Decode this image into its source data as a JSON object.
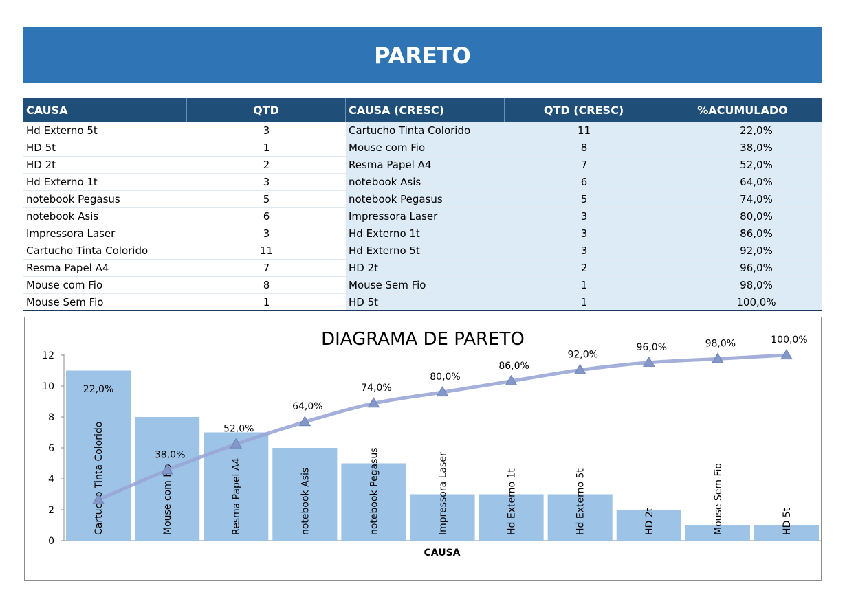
{
  "banner": {
    "title": "PARETO"
  },
  "table": {
    "headers": [
      "CAUSA",
      "QTD",
      "CAUSA (CRESC)",
      "QTD (CRESC)",
      "%ACUMULADO"
    ],
    "rows": [
      [
        "Hd Externo 5t",
        "3",
        "Cartucho Tinta Colorido",
        "11",
        "22,0%"
      ],
      [
        "HD 5t",
        "1",
        "Mouse com Fio",
        "8",
        "38,0%"
      ],
      [
        "HD 2t",
        "2",
        "Resma Papel A4",
        "7",
        "52,0%"
      ],
      [
        "Hd Externo 1t",
        "3",
        "notebook Asis",
        "6",
        "64,0%"
      ],
      [
        "notebook Pegasus",
        "5",
        "notebook Pegasus",
        "5",
        "74,0%"
      ],
      [
        "notebook Asis",
        "6",
        "Impressora Laser",
        "3",
        "80,0%"
      ],
      [
        "Impressora Laser",
        "3",
        "Hd Externo 1t",
        "3",
        "86,0%"
      ],
      [
        "Cartucho Tinta Colorido",
        "11",
        "Hd Externo 5t",
        "3",
        "92,0%"
      ],
      [
        "Resma Papel A4",
        "7",
        "HD 2t",
        "2",
        "96,0%"
      ],
      [
        "Mouse com Fio",
        "8",
        "Mouse Sem Fio",
        "1",
        "98,0%"
      ],
      [
        "Mouse Sem Fio",
        "1",
        "HD 5t",
        "1",
        "100,0%"
      ]
    ]
  },
  "chart_data": {
    "type": "bar",
    "title": "DIAGRAMA DE PARETO",
    "xlabel": "CAUSA",
    "ylabel": "",
    "ylim": [
      0,
      12
    ],
    "yticks": [
      0,
      2,
      4,
      6,
      8,
      10,
      12
    ],
    "grid": false,
    "legend": "none",
    "categories": [
      "Cartucho Tinta Colorido",
      "Mouse com Fio",
      "Resma Papel A4",
      "notebook Asis",
      "notebook Pegasus",
      "Impressora Laser",
      "Hd Externo 1t",
      "Hd Externo 5t",
      "HD 2t",
      "Mouse Sem Fio",
      "HD 5t"
    ],
    "series": [
      {
        "type": "bar",
        "values": [
          11,
          8,
          7,
          6,
          5,
          3,
          3,
          3,
          2,
          1,
          1
        ],
        "color": "#9dc3e6"
      },
      {
        "type": "line",
        "values": [
          22,
          38,
          52,
          64,
          74,
          80,
          86,
          92,
          96,
          98,
          100
        ],
        "labels": [
          "22,0%",
          "38,0%",
          "52,0%",
          "64,0%",
          "74,0%",
          "80,0%",
          "86,0%",
          "92,0%",
          "96,0%",
          "98,0%",
          "100,0%"
        ],
        "color": "#9aa7d6",
        "secondary_range": [
          0,
          100
        ]
      }
    ]
  }
}
